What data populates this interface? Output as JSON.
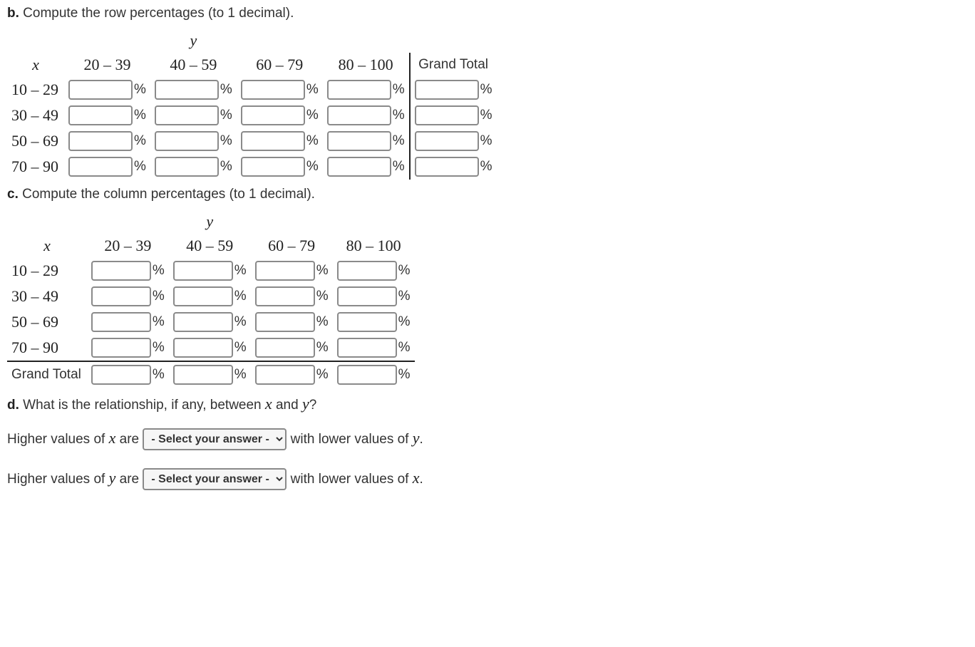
{
  "partB": {
    "label_bold": "b.",
    "label_text": "Compute the row percentages (to 1 decimal).",
    "x_var": "x",
    "y_var": "y",
    "col_headers": [
      "20 – 39",
      "40 – 59",
      "60 – 79",
      "80 – 100"
    ],
    "grand_total_label": "Grand Total",
    "row_headers": [
      "10 – 29",
      "30 – 49",
      "50 – 69",
      "70 – 90"
    ],
    "percent_symbol": "%"
  },
  "partC": {
    "label_bold": "c.",
    "label_text": "Compute the column percentages (to 1 decimal).",
    "x_var": "x",
    "y_var": "y",
    "col_headers": [
      "20 – 39",
      "40 – 59",
      "60 – 79",
      "80 – 100"
    ],
    "row_headers": [
      "10 – 29",
      "30 – 49",
      "50 – 69",
      "70 – 90"
    ],
    "grand_total_label": "Grand Total",
    "percent_symbol": "%"
  },
  "partD": {
    "label_bold": "d.",
    "label_text": "What is the relationship, if any, between",
    "x_var": "x",
    "y_var": "y",
    "and_word": "and",
    "qmark": "?",
    "line1_pre": "Higher values of",
    "line1_mid": "are",
    "line1_post": "with lower values of",
    "line2_pre": "Higher values of",
    "line2_mid": "are",
    "line2_post": "with lower values of",
    "select_placeholder": "- Select your answer -",
    "period": "."
  }
}
